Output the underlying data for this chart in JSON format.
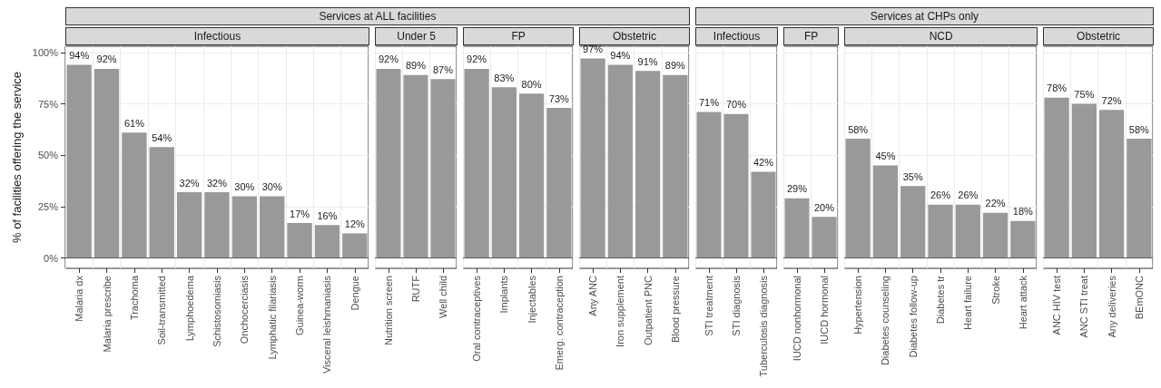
{
  "chart_data": [
    {
      "type": "bar",
      "title": "Infectious",
      "annotations": [
        "Services at ALL facilities"
      ],
      "ylabel": "% of facilities offering the service",
      "categories": [
        "Malaria dx",
        "Malaria prescribe",
        "Trachoma",
        "Soil-transmitted",
        "Lymphoedema",
        "Schistosomiasis",
        "Onchocerciasis",
        "Lymphatic filariasis",
        "Guinea-worm",
        "Visceral leishmaniasis",
        "Dengue"
      ],
      "values": [
        94,
        92,
        61,
        54,
        32,
        32,
        30,
        30,
        17,
        16,
        12
      ],
      "value_labels": [
        "94%",
        "92%",
        "61%",
        "54%",
        "32%",
        "32%",
        "30%",
        "30%",
        "17%",
        "16%",
        "12%"
      ],
      "color": "#999999",
      "ylim": [
        -5,
        103
      ],
      "yticks": [
        {
          "value": 0,
          "label": "0%"
        },
        {
          "value": 25,
          "label": "25%"
        },
        {
          "value": 50,
          "label": "50%"
        },
        {
          "value": 75,
          "label": "75%"
        },
        {
          "value": 100,
          "label": "100%"
        }
      ],
      "grid": true,
      "ref_lines": [
        {
          "axis": "y",
          "value": 0,
          "color": "#595959"
        }
      ]
    },
    {
      "type": "bar",
      "title": "Under 5",
      "categories": [
        "Nutrition screen",
        "RUTF",
        "Well child"
      ],
      "values": [
        92,
        89,
        87
      ],
      "value_labels": [
        "92%",
        "89%",
        "87%"
      ],
      "color": "#999999",
      "ylim": [
        -5,
        103
      ],
      "yticks": [
        {
          "value": 0,
          "label": null
        },
        {
          "value": 25,
          "label": null
        },
        {
          "value": 50,
          "label": null
        },
        {
          "value": 75,
          "label": null
        },
        {
          "value": 100,
          "label": null
        }
      ],
      "grid": true,
      "tick_labels": "x",
      "ref_lines": [
        {
          "axis": "y",
          "value": 0,
          "color": "#595959"
        }
      ]
    },
    {
      "type": "bar",
      "title": "FP",
      "categories": [
        "Oral contraceptives",
        "Implants",
        "Injectables",
        "Emerg. contraception"
      ],
      "values": [
        92,
        83,
        80,
        73
      ],
      "value_labels": [
        "92%",
        "83%",
        "80%",
        "73%"
      ],
      "color": "#999999",
      "ylim": [
        -5,
        103
      ],
      "yticks": [
        {
          "value": 0,
          "label": null
        },
        {
          "value": 25,
          "label": null
        },
        {
          "value": 50,
          "label": null
        },
        {
          "value": 75,
          "label": null
        },
        {
          "value": 100,
          "label": null
        }
      ],
      "grid": true,
      "tick_labels": "x",
      "ref_lines": [
        {
          "axis": "y",
          "value": 0,
          "color": "#595959"
        }
      ]
    },
    {
      "type": "bar",
      "title": "Obstetric",
      "categories": [
        "Any ANC",
        "Iron supplement",
        "Outpatient PNC",
        "Blood pressure"
      ],
      "values": [
        97,
        94,
        91,
        89
      ],
      "value_labels": [
        "97%",
        "94%",
        "91%",
        "89%"
      ],
      "color": "#999999",
      "ylim": [
        -5,
        103
      ],
      "yticks": [
        {
          "value": 0,
          "label": null
        },
        {
          "value": 25,
          "label": null
        },
        {
          "value": 50,
          "label": null
        },
        {
          "value": 75,
          "label": null
        },
        {
          "value": 100,
          "label": null
        }
      ],
      "grid": true,
      "tick_labels": "x",
      "ref_lines": [
        {
          "axis": "y",
          "value": 0,
          "color": "#595959"
        }
      ]
    },
    {
      "type": "bar",
      "title": "Infectious",
      "annotations": [
        "Services at CHPs only"
      ],
      "categories": [
        "STI treatment",
        "STI diagnosis",
        "Tuberculosis diagnosis"
      ],
      "values": [
        71,
        70,
        42
      ],
      "value_labels": [
        "71%",
        "70%",
        "42%"
      ],
      "color": "#999999",
      "ylim": [
        -5,
        103
      ],
      "yticks": [
        {
          "value": 0,
          "label": null
        },
        {
          "value": 25,
          "label": null
        },
        {
          "value": 50,
          "label": null
        },
        {
          "value": 75,
          "label": null
        },
        {
          "value": 100,
          "label": null
        }
      ],
      "grid": true,
      "tick_labels": "x",
      "ref_lines": [
        {
          "axis": "y",
          "value": 0,
          "color": "#595959"
        }
      ]
    },
    {
      "type": "bar",
      "title": "FP",
      "categories": [
        "IUCD nonhormonal",
        "IUCD hormonal"
      ],
      "values": [
        29,
        20
      ],
      "value_labels": [
        "29%",
        "20%"
      ],
      "color": "#999999",
      "ylim": [
        -5,
        103
      ],
      "yticks": [
        {
          "value": 0,
          "label": null
        },
        {
          "value": 25,
          "label": null
        },
        {
          "value": 50,
          "label": null
        },
        {
          "value": 75,
          "label": null
        },
        {
          "value": 100,
          "label": null
        }
      ],
      "grid": true,
      "tick_labels": "x",
      "ref_lines": [
        {
          "axis": "y",
          "value": 0,
          "color": "#595959"
        }
      ]
    },
    {
      "type": "bar",
      "title": "NCD",
      "categories": [
        "Hypertension",
        "Diabetes counseling",
        "Diabetes follow-up",
        "Diabetes tr",
        "Heart failure",
        "Stroke",
        "Heart attack"
      ],
      "values": [
        58,
        45,
        35,
        26,
        26,
        22,
        18
      ],
      "value_labels": [
        "58%",
        "45%",
        "35%",
        "26%",
        "26%",
        "22%",
        "18%"
      ],
      "color": "#999999",
      "ylim": [
        -5,
        103
      ],
      "yticks": [
        {
          "value": 0,
          "label": null
        },
        {
          "value": 25,
          "label": null
        },
        {
          "value": 50,
          "label": null
        },
        {
          "value": 75,
          "label": null
        },
        {
          "value": 100,
          "label": null
        }
      ],
      "grid": true,
      "tick_labels": "x",
      "ref_lines": [
        {
          "axis": "y",
          "value": 0,
          "color": "#595959"
        }
      ]
    },
    {
      "type": "bar",
      "title": "Obstetric",
      "categories": [
        "ANC HIV test",
        "ANC STI treat",
        "Any deliveries",
        "BEmONC"
      ],
      "values": [
        78,
        75,
        72,
        58
      ],
      "value_labels": [
        "78%",
        "75%",
        "72%",
        "58%"
      ],
      "color": "#999999",
      "ylim": [
        -5,
        103
      ],
      "yticks": [
        {
          "value": 0,
          "label": null
        },
        {
          "value": 25,
          "label": null
        },
        {
          "value": 50,
          "label": null
        },
        {
          "value": 75,
          "label": null
        },
        {
          "value": 100,
          "label": null
        }
      ],
      "grid": true,
      "tick_labels": "x",
      "ref_lines": [
        {
          "axis": "y",
          "value": 0,
          "color": "#595959"
        }
      ]
    }
  ]
}
